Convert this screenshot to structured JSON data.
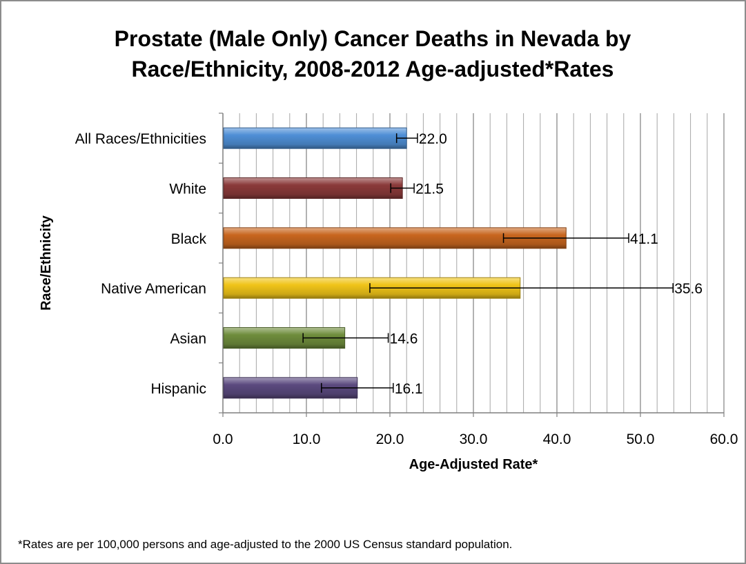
{
  "chart_data": {
    "type": "bar",
    "orientation": "horizontal",
    "title_line1": "Prostate (Male Only) Cancer Deaths in Nevada by",
    "title_line2": "Race/Ethnicity, 2008-2012 Age-adjusted*Rates",
    "xlabel": "Age-Adjusted Rate*",
    "ylabel": "Race/Ethnicity",
    "xlim": [
      0,
      60
    ],
    "x_ticks": [
      "0.0",
      "10.0",
      "20.0",
      "30.0",
      "40.0",
      "50.0",
      "60.0"
    ],
    "x_tick_values": [
      0,
      10,
      20,
      30,
      40,
      50,
      60
    ],
    "minor_gridline_step": 2,
    "grid": true,
    "categories": [
      "All Races/Ethnicities",
      "White",
      "Black",
      "Native American",
      "Asian",
      "Hispanic"
    ],
    "values": [
      22.0,
      21.5,
      41.1,
      35.6,
      14.6,
      16.1
    ],
    "value_labels": [
      "22.0",
      "21.5",
      "41.1",
      "35.6",
      "14.6",
      "16.1"
    ],
    "error_low": [
      20.8,
      20.1,
      33.6,
      17.6,
      9.6,
      11.8
    ],
    "error_high": [
      23.3,
      22.9,
      48.6,
      53.9,
      19.8,
      20.4
    ],
    "bar_colors": [
      "#4f8fd6",
      "#8b3a3a",
      "#c8661f",
      "#f0c419",
      "#6f8d3c",
      "#5b4a7f"
    ],
    "footnote": "*Rates are per 100,000 persons  and age-adjusted to the 2000  US  Census standard population."
  }
}
